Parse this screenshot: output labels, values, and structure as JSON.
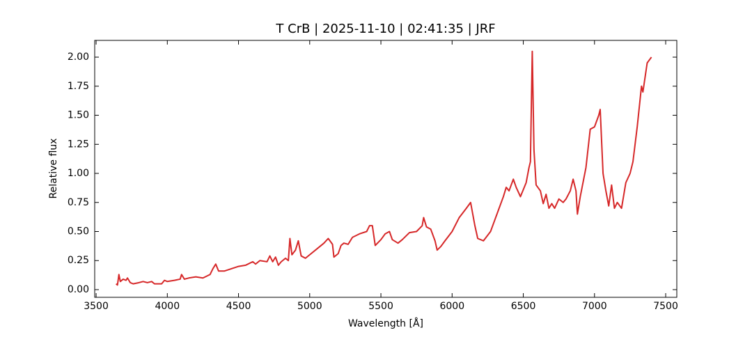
{
  "chart_data": {
    "type": "line",
    "title": "T CrB | 2025-11-10 | 02:41:35 | JRF",
    "x_label": "Wavelength [Å]",
    "y_label": "Relative flux",
    "xlim": [
      3490,
      7578
    ],
    "ylim": [
      -0.066,
      2.144
    ],
    "xticks": [
      3500,
      4000,
      4500,
      5000,
      5500,
      6000,
      6500,
      7000,
      7500
    ],
    "yticks": [
      {
        "value": 0,
        "label": "0.00"
      },
      {
        "value": 0.25,
        "label": "0.25"
      },
      {
        "value": 0.5,
        "label": "0.50"
      },
      {
        "value": 0.75,
        "label": "0.75"
      },
      {
        "value": 1,
        "label": "1.00"
      },
      {
        "value": 1.25,
        "label": "1.25"
      },
      {
        "value": 1.5,
        "label": "1.50"
      },
      {
        "value": 1.75,
        "label": "1.75"
      },
      {
        "value": 2,
        "label": "2.00"
      }
    ],
    "x": [
      3640,
      3650,
      3660,
      3670,
      3690,
      3710,
      3720,
      3740,
      3760,
      3800,
      3830,
      3860,
      3890,
      3910,
      3960,
      3980,
      4000,
      4050,
      4090,
      4100,
      4120,
      4150,
      4200,
      4250,
      4300,
      4320,
      4340,
      4360,
      4400,
      4450,
      4500,
      4550,
      4600,
      4620,
      4650,
      4700,
      4720,
      4740,
      4760,
      4780,
      4800,
      4830,
      4850,
      4861,
      4875,
      4900,
      4920,
      4940,
      4970,
      5000,
      5050,
      5100,
      5130,
      5160,
      5170,
      5200,
      5220,
      5240,
      5270,
      5300,
      5350,
      5400,
      5420,
      5440,
      5460,
      5500,
      5530,
      5560,
      5580,
      5620,
      5650,
      5700,
      5750,
      5790,
      5800,
      5820,
      5850,
      5880,
      5895,
      5920,
      5950,
      6000,
      6050,
      6100,
      6130,
      6160,
      6180,
      6220,
      6270,
      6300,
      6330,
      6360,
      6380,
      6400,
      6430,
      6450,
      6480,
      6520,
      6540,
      6550,
      6563,
      6575,
      6590,
      6620,
      6640,
      6660,
      6680,
      6700,
      6720,
      6750,
      6780,
      6800,
      6830,
      6850,
      6870,
      6880,
      6900,
      6940,
      6970,
      7000,
      7030,
      7040,
      7060,
      7080,
      7100,
      7120,
      7140,
      7160,
      7190,
      7220,
      7250,
      7270,
      7300,
      7330,
      7340,
      7370,
      7400
    ],
    "series": [
      {
        "name": "T CrB",
        "color": "#d62728",
        "values": [
          0.05,
          0.04,
          0.13,
          0.07,
          0.09,
          0.08,
          0.1,
          0.06,
          0.05,
          0.06,
          0.07,
          0.06,
          0.07,
          0.05,
          0.05,
          0.08,
          0.07,
          0.08,
          0.09,
          0.13,
          0.09,
          0.1,
          0.11,
          0.1,
          0.13,
          0.18,
          0.22,
          0.16,
          0.16,
          0.18,
          0.2,
          0.21,
          0.24,
          0.22,
          0.25,
          0.24,
          0.29,
          0.24,
          0.28,
          0.21,
          0.24,
          0.27,
          0.25,
          0.44,
          0.3,
          0.34,
          0.42,
          0.29,
          0.27,
          0.3,
          0.35,
          0.4,
          0.44,
          0.39,
          0.28,
          0.31,
          0.38,
          0.4,
          0.39,
          0.45,
          0.48,
          0.5,
          0.55,
          0.55,
          0.38,
          0.43,
          0.48,
          0.5,
          0.43,
          0.4,
          0.43,
          0.49,
          0.5,
          0.55,
          0.62,
          0.54,
          0.52,
          0.42,
          0.34,
          0.37,
          0.42,
          0.5,
          0.62,
          0.7,
          0.75,
          0.55,
          0.44,
          0.42,
          0.5,
          0.6,
          0.7,
          0.8,
          0.88,
          0.85,
          0.95,
          0.88,
          0.8,
          0.92,
          1.05,
          1.1,
          2.05,
          1.2,
          0.9,
          0.85,
          0.74,
          0.82,
          0.7,
          0.74,
          0.7,
          0.78,
          0.75,
          0.78,
          0.85,
          0.95,
          0.85,
          0.65,
          0.8,
          1.05,
          1.38,
          1.4,
          1.5,
          1.55,
          1.0,
          0.85,
          0.72,
          0.9,
          0.7,
          0.75,
          0.7,
          0.92,
          1.0,
          1.1,
          1.4,
          1.75,
          1.7,
          1.95,
          2.0
        ]
      }
    ]
  }
}
